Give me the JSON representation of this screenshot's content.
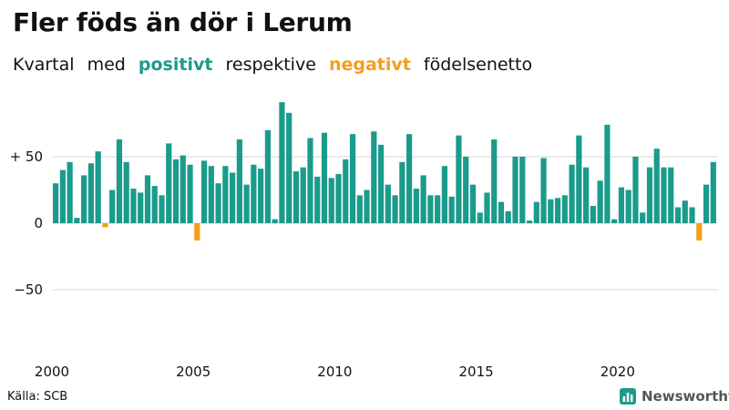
{
  "title": "Fler föds än dör i Lerum",
  "subtitle": {
    "w1": "Kvartal",
    "w2": "med",
    "positive": "positivt",
    "w3": "respektive",
    "negative": "negativt",
    "w4": "födelsenetto"
  },
  "source": "Källa: SCB",
  "brand": {
    "name": "Newsworthy",
    "logo_icon": "bar-chart-icon"
  },
  "colors": {
    "positive": "#1a9b8b",
    "negative": "#f59e1b",
    "grid": "#d7d7d7",
    "text": "#111111",
    "brand": "#555555"
  },
  "chart_data": {
    "type": "bar",
    "title": "Fler föds än dör i Lerum",
    "subtitle": "Kvartal med positivt respektive negativt födelsenetto",
    "xlabel": "",
    "ylabel": "",
    "x_start_year": 2000,
    "quarters_per_year": 4,
    "xticks": [
      {
        "label": "2000",
        "year": 2000
      },
      {
        "label": "2005",
        "year": 2005
      },
      {
        "label": "2010",
        "year": 2010
      },
      {
        "label": "2015",
        "year": 2015
      },
      {
        "label": "2020",
        "year": 2020
      }
    ],
    "yticks": [
      {
        "label": "+ 50",
        "value": 50
      },
      {
        "label": "0",
        "value": 0
      },
      {
        "label": "−50",
        "value": -50
      }
    ],
    "ylim": [
      -95,
      95
    ],
    "grid": true,
    "values": [
      30,
      40,
      46,
      4,
      36,
      45,
      54,
      -3,
      25,
      63,
      46,
      26,
      23,
      36,
      28,
      21,
      60,
      48,
      51,
      44,
      -13,
      47,
      43,
      30,
      43,
      38,
      63,
      29,
      44,
      41,
      70,
      3,
      91,
      83,
      39,
      42,
      64,
      35,
      68,
      34,
      37,
      48,
      67,
      21,
      25,
      69,
      59,
      29,
      21,
      46,
      67,
      26,
      36,
      21,
      21,
      43,
      20,
      66,
      50,
      29,
      8,
      23,
      63,
      16,
      9,
      50,
      50,
      2,
      16,
      49,
      18,
      19,
      21,
      44,
      66,
      42,
      13,
      32,
      74,
      3,
      27,
      25,
      50,
      8,
      42,
      56,
      42,
      42,
      12,
      17,
      12,
      -13,
      29,
      46
    ]
  }
}
